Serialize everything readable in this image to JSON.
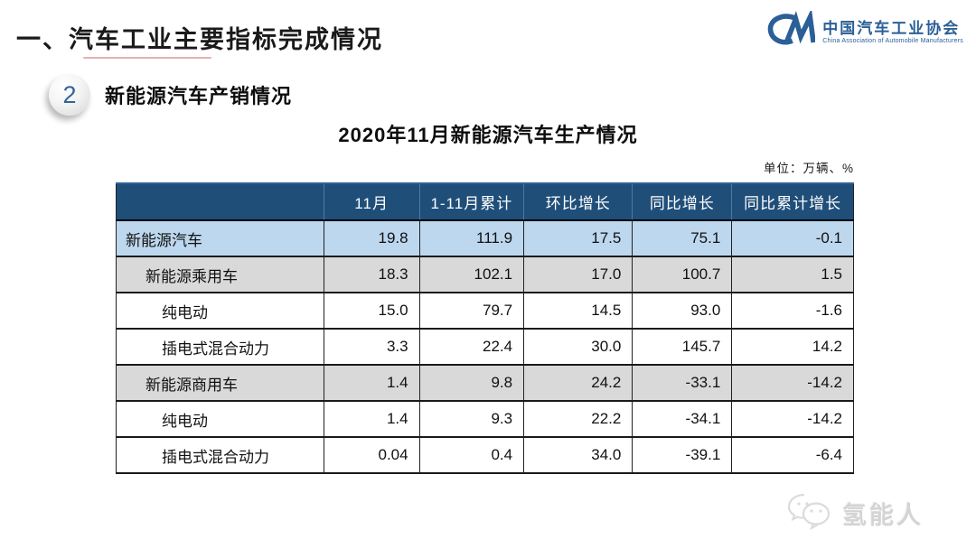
{
  "slide": {
    "title": "一、汽车工业主要指标完成情况",
    "section": {
      "number": "2",
      "label": "新能源汽车产销情况"
    },
    "table_title": "2020年11月新能源汽车生产情况",
    "unit_note": "单位：万辆、%"
  },
  "logo": {
    "mark": "CM-swoosh",
    "org_cn": "中国汽车工业协会",
    "org_en": "China Association of Automobile Manufacturers"
  },
  "watermark": {
    "icon": "wechat-bubbles-icon",
    "text": "氢能人"
  },
  "colors": {
    "header_bg": "#1F4E79",
    "row_blue": "#BDD7EE",
    "row_gray": "#D9D9D9",
    "logo_blue": "#2B5F97",
    "accent_red": "#C0504D",
    "watermark_gray": "#d4d4d4"
  },
  "table": {
    "columns": [
      "",
      "11月",
      "1-11月累计",
      "环比增长",
      "同比增长",
      "同比累计增长"
    ],
    "rows": [
      {
        "label": "新能源汽车",
        "indent": 0,
        "style": "highlight-blue",
        "values": [
          "19.8",
          "111.9",
          "17.5",
          "75.1",
          "-0.1"
        ]
      },
      {
        "label": "新能源乘用车",
        "indent": 1,
        "style": "gray",
        "values": [
          "18.3",
          "102.1",
          "17.0",
          "100.7",
          "1.5"
        ]
      },
      {
        "label": "纯电动",
        "indent": 2,
        "style": "plain",
        "values": [
          "15.0",
          "79.7",
          "14.5",
          "93.0",
          "-1.6"
        ]
      },
      {
        "label": "插电式混合动力",
        "indent": 2,
        "style": "plain",
        "values": [
          "3.3",
          "22.4",
          "30.0",
          "145.7",
          "14.2"
        ]
      },
      {
        "label": "新能源商用车",
        "indent": 1,
        "style": "gray",
        "values": [
          "1.4",
          "9.8",
          "24.2",
          "-33.1",
          "-14.2"
        ]
      },
      {
        "label": "纯电动",
        "indent": 2,
        "style": "plain",
        "values": [
          "1.4",
          "9.3",
          "22.2",
          "-34.1",
          "-14.2"
        ]
      },
      {
        "label": "插电式混合动力",
        "indent": 2,
        "style": "plain",
        "values": [
          "0.04",
          "0.4",
          "34.0",
          "-39.1",
          "-6.4"
        ]
      }
    ]
  }
}
